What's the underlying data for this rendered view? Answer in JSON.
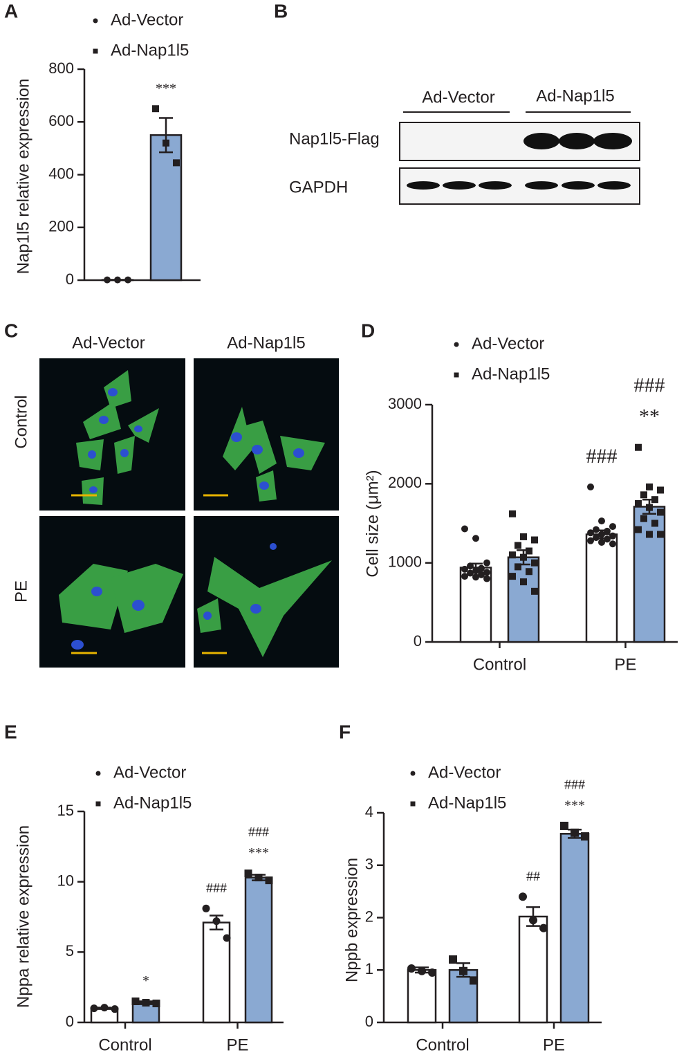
{
  "chart_data": [
    {
      "type": "bar",
      "panel_label": "A",
      "y_label": "Nap1l5 relative expression",
      "categories": [
        null
      ],
      "ylim": [
        0,
        800
      ],
      "yticks": [
        0,
        200,
        400,
        600,
        800
      ],
      "series": [
        {
          "name": "Ad-Vector",
          "color": "#ffffff",
          "marker": "circle",
          "values": [
            1
          ],
          "errors": [
            0.2
          ],
          "points": [
            [
              1,
              1,
              1
            ]
          ],
          "annotations": [
            null
          ]
        },
        {
          "name": "Ad-Nap1l5",
          "color": "#8aa9d2",
          "marker": "square",
          "values": [
            550
          ],
          "errors": [
            65
          ],
          "points": [
            [
              650,
              520,
              445
            ]
          ],
          "annotations": [
            [
              "***"
            ]
          ]
        }
      ]
    },
    {
      "type": "bar",
      "panel_label": "D",
      "y_label": "Cell size (μm²)",
      "categories": [
        "Control",
        "PE"
      ],
      "ylim": [
        0,
        3000
      ],
      "yticks": [
        0,
        1000,
        2000,
        3000
      ],
      "series": [
        {
          "name": "Ad-Vector",
          "color": "#ffffff",
          "marker": "circle",
          "values": [
            940,
            1360
          ],
          "errors": [
            50,
            50
          ],
          "points": [
            [
              1430,
              1310,
              1000,
              960,
              930,
              920,
              900,
              880,
              870,
              850,
              830,
              820,
              800
            ],
            [
              1960,
              1530,
              1460,
              1420,
              1400,
              1380,
              1360,
              1340,
              1320,
              1300,
              1280,
              1260,
              1240
            ]
          ],
          "annotations": [
            null,
            [
              "###"
            ]
          ]
        },
        {
          "name": "Ad-Nap1l5",
          "color": "#8aa9d2",
          "marker": "square",
          "values": [
            1070,
            1710
          ],
          "errors": [
            90,
            90
          ],
          "points": [
            [
              1620,
              1330,
              1290,
              1220,
              1150,
              1100,
              1070,
              1000,
              950,
              890,
              830,
              760,
              640
            ],
            [
              2460,
              1960,
              1920,
              1860,
              1800,
              1750,
              1700,
              1640,
              1560,
              1500,
              1420,
              1360,
              1360
            ]
          ],
          "annotations": [
            null,
            [
              "###",
              "**"
            ]
          ]
        }
      ]
    },
    {
      "type": "bar",
      "panel_label": "E",
      "y_label": "Nppa relative expression",
      "categories": [
        "Control",
        "PE"
      ],
      "ylim": [
        0,
        15
      ],
      "yticks": [
        0,
        5,
        10,
        15
      ],
      "series": [
        {
          "name": "Ad-Vector",
          "color": "#ffffff",
          "marker": "circle",
          "values": [
            1.0,
            7.1
          ],
          "errors": [
            0.05,
            0.5
          ],
          "points": [
            [
              1.0,
              1.05,
              0.95
            ],
            [
              8.1,
              7.2,
              6.0
            ]
          ],
          "annotations": [
            null,
            [
              "###"
            ]
          ]
        },
        {
          "name": "Ad-Nap1l5",
          "color": "#8aa9d2",
          "marker": "square",
          "values": [
            1.4,
            10.3
          ],
          "errors": [
            0.1,
            0.2
          ],
          "points": [
            [
              1.5,
              1.4,
              1.35
            ],
            [
              10.6,
              10.3,
              10.1
            ]
          ],
          "annotations": [
            [
              "*"
            ],
            [
              "###",
              "***"
            ]
          ]
        }
      ]
    },
    {
      "type": "bar",
      "panel_label": "F",
      "y_label": "Nppb expression",
      "categories": [
        "Control",
        "PE"
      ],
      "ylim": [
        0,
        4
      ],
      "yticks": [
        0,
        1,
        2,
        3,
        4
      ],
      "series": [
        {
          "name": "Ad-Vector",
          "color": "#ffffff",
          "marker": "circle",
          "values": [
            1.0,
            2.02
          ],
          "errors": [
            0.05,
            0.18
          ],
          "points": [
            [
              1.03,
              0.98,
              0.95
            ],
            [
              2.4,
              1.95,
              1.8
            ]
          ],
          "annotations": [
            null,
            [
              "##"
            ]
          ]
        },
        {
          "name": "Ad-Nap1l5",
          "color": "#8aa9d2",
          "marker": "square",
          "values": [
            1.0,
            3.6
          ],
          "errors": [
            0.13,
            0.08
          ],
          "points": [
            [
              1.2,
              0.98,
              0.8
            ],
            [
              3.75,
              3.62,
              3.55
            ]
          ],
          "annotations": [
            null,
            [
              "###",
              "***"
            ]
          ]
        }
      ]
    }
  ],
  "blot": {
    "panel_label": "B",
    "groups": [
      "Ad-Vector",
      "Ad-Nap1l5"
    ],
    "rows": [
      "Nap1l5-Flag",
      "GAPDH"
    ]
  },
  "micrographs": {
    "panel_label": "C",
    "columns": [
      "Ad-Vector",
      "Ad-Nap1l5"
    ],
    "rows": [
      "Control",
      "PE"
    ]
  }
}
